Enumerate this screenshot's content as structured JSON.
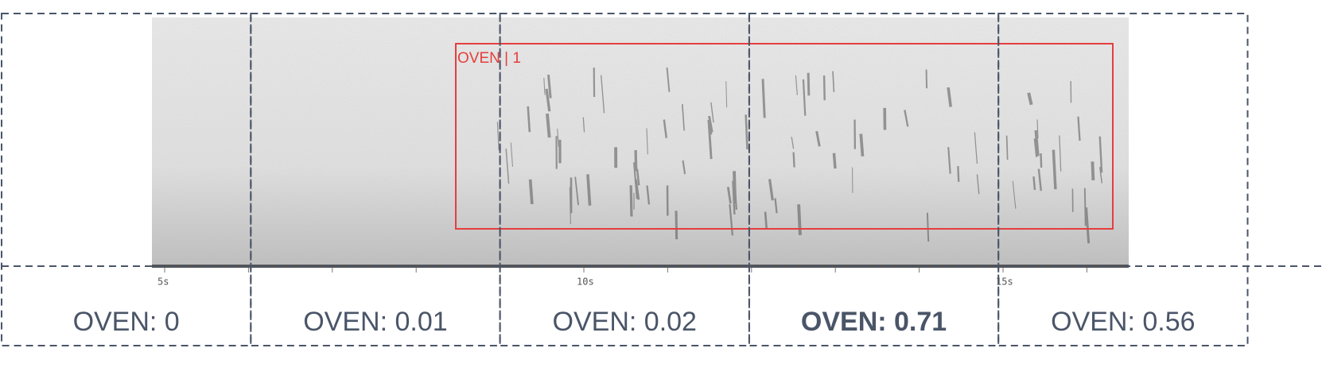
{
  "annotation": {
    "label": "OVEN | 1"
  },
  "time_axis": {
    "labels": [
      "5s",
      "10s",
      "15s"
    ]
  },
  "segments": [
    "OVEN: 0",
    "OVEN: 0.01",
    "OVEN: 0.02",
    "OVEN: 0.71",
    "OVEN: 0.56"
  ],
  "highlighted_segment": 3
}
